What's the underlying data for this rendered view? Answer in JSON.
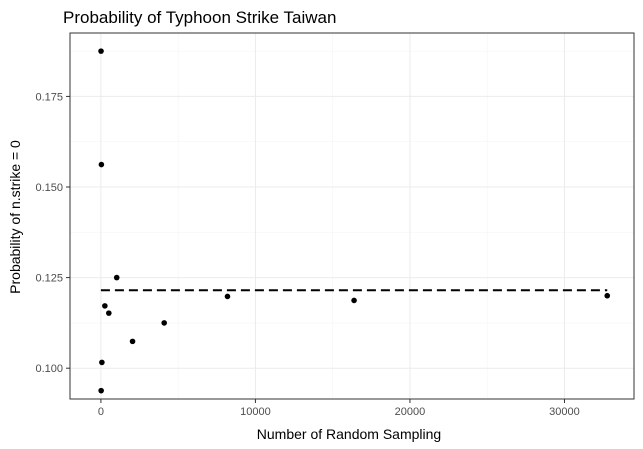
{
  "chart_data": {
    "type": "scatter",
    "title": "Probability of Typhoon Strike Taiwan",
    "xlabel": "Number of Random Sampling",
    "ylabel": "Probability of n.strike = 0",
    "xlim": [
      -2000,
      34500
    ],
    "ylim": [
      0.0915,
      0.1925
    ],
    "x_ticks": [
      0,
      10000,
      20000,
      30000
    ],
    "y_ticks": [
      0.1,
      0.125,
      0.15,
      0.175
    ],
    "x_tick_labels": [
      "0",
      "10000",
      "20000",
      "30000"
    ],
    "y_tick_labels": [
      "0.100",
      "0.125",
      "0.150",
      "0.175"
    ],
    "grid": true,
    "legend": "none",
    "reference_line": {
      "style": "dashed",
      "y": 0.1215
    },
    "points": [
      {
        "x": 8,
        "y": 0.1875
      },
      {
        "x": 16,
        "y": 0.0938
      },
      {
        "x": 32,
        "y": 0.1562
      },
      {
        "x": 64,
        "y": 0.1016
      },
      {
        "x": 256,
        "y": 0.1172
      },
      {
        "x": 512,
        "y": 0.1152
      },
      {
        "x": 1024,
        "y": 0.125
      },
      {
        "x": 2048,
        "y": 0.1074
      },
      {
        "x": 4096,
        "y": 0.1125
      },
      {
        "x": 8192,
        "y": 0.1198
      },
      {
        "x": 16384,
        "y": 0.1187
      },
      {
        "x": 32768,
        "y": 0.12
      }
    ],
    "colors": {
      "point": "#000000",
      "reference_line": "#000000",
      "grid_major": "#ebebeb",
      "grid_minor": "#f5f5f5",
      "panel_border": "#333333",
      "tick_label": "#4d4d4d"
    }
  }
}
